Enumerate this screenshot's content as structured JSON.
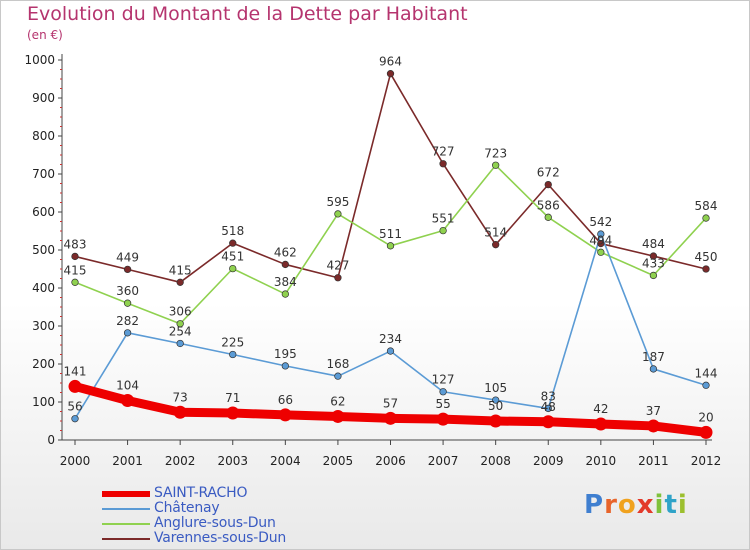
{
  "header": {
    "title": "Evolution du Montant de la Dette par Habitant",
    "subtitle": "(en €)"
  },
  "logo": {
    "letters": [
      "P",
      "r",
      "o",
      "x",
      "i",
      "t",
      "i"
    ],
    "colors": [
      "#3f7fd0",
      "#e8642a",
      "#f0a21e",
      "#e33a2b",
      "#7fc23c",
      "#2fa3c8",
      "#9cbf2e"
    ]
  },
  "chart_data": {
    "type": "line",
    "x": [
      "2000",
      "2001",
      "2002",
      "2003",
      "2004",
      "2005",
      "2006",
      "2007",
      "2008",
      "2009",
      "2010",
      "2011",
      "2012"
    ],
    "ylim": [
      0,
      1000
    ],
    "yticks": [
      "0",
      "100",
      "200",
      "300",
      "400",
      "500",
      "600",
      "700",
      "800",
      "900",
      "1000"
    ],
    "grid": false,
    "legend_position": "bottom-left",
    "series": [
      {
        "name": "SAINT-RACHO",
        "color": "#ee0000",
        "values": [
          141,
          104,
          73,
          71,
          66,
          62,
          57,
          55,
          50,
          48,
          42,
          37,
          20
        ],
        "labels": [
          "141",
          "104",
          "73",
          "71",
          "66",
          "62",
          "57",
          "55",
          "50",
          "48",
          "42",
          "37",
          "20"
        ]
      },
      {
        "name": "Châtenay",
        "color": "#5b9bd5",
        "values": [
          56,
          282,
          254,
          225,
          195,
          168,
          234,
          127,
          105,
          83,
          542,
          187,
          144
        ],
        "labels": [
          "56",
          "282",
          "254",
          "225",
          "195",
          "168",
          "234",
          "127",
          "105",
          "83",
          "542",
          "187",
          "144"
        ]
      },
      {
        "name": "Anglure-sous-Dun",
        "color": "#8fd14f",
        "values": [
          415,
          360,
          306,
          451,
          384,
          595,
          511,
          551,
          723,
          586,
          494,
          433,
          584
        ],
        "labels": [
          "415",
          "360",
          "306",
          "451",
          "384",
          "595",
          "511",
          "551",
          "723",
          "586",
          "494",
          "433",
          "584"
        ]
      },
      {
        "name": "Varennes-sous-Dun",
        "color": "#7b2a2a",
        "values": [
          483,
          449,
          415,
          518,
          462,
          427,
          964,
          727,
          514,
          672,
          517,
          484,
          450
        ],
        "labels": [
          "483",
          "449",
          "415",
          "518",
          "462",
          "427",
          "964",
          "727",
          "514",
          "672",
          "",
          "484",
          "450"
        ]
      }
    ]
  }
}
